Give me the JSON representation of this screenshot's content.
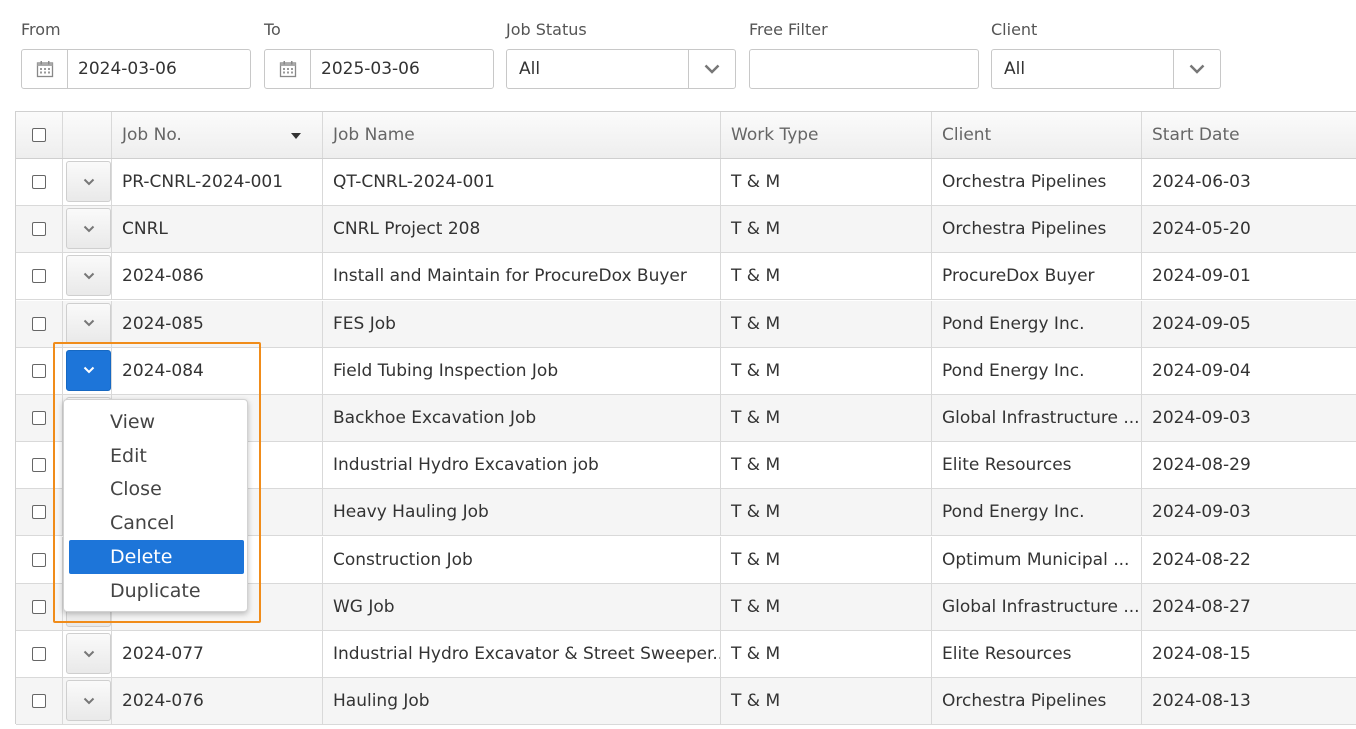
{
  "filters": {
    "from": {
      "label": "From",
      "value": "2024-03-06"
    },
    "to": {
      "label": "To",
      "value": "2025-03-06"
    },
    "job_status": {
      "label": "Job Status",
      "value": "All"
    },
    "free_filter": {
      "label": "Free Filter",
      "value": ""
    },
    "client": {
      "label": "Client",
      "value": "All"
    }
  },
  "table": {
    "columns": [
      "Job No.",
      "Job Name",
      "Work Type",
      "Client",
      "Start Date"
    ],
    "rows": [
      {
        "job_no": "PR-CNRL-2024-001",
        "job_name": "QT-CNRL-2024-001",
        "work_type": "T & M",
        "client": "Orchestra Pipelines",
        "start_date": "2024-06-03"
      },
      {
        "job_no": "CNRL",
        "job_name": "CNRL Project 208",
        "work_type": "T & M",
        "client": "Orchestra Pipelines",
        "start_date": "2024-05-20"
      },
      {
        "job_no": "2024-086",
        "job_name": "Install and Maintain for ProcureDox Buyer",
        "work_type": "T & M",
        "client": "ProcureDox Buyer",
        "start_date": "2024-09-01"
      },
      {
        "job_no": "2024-085",
        "job_name": "FES Job",
        "work_type": "T & M",
        "client": "Pond Energy Inc.",
        "start_date": "2024-09-05"
      },
      {
        "job_no": "2024-084",
        "job_name": "Field Tubing Inspection Job",
        "work_type": "T & M",
        "client": "Pond Energy Inc.",
        "start_date": "2024-09-04"
      },
      {
        "job_no": "",
        "job_name": "Backhoe Excavation Job",
        "work_type": "T & M",
        "client": "Global Infrastructure ...",
        "start_date": "2024-09-03"
      },
      {
        "job_no": "",
        "job_name": "Industrial Hydro Excavation job",
        "work_type": "T & M",
        "client": "Elite Resources",
        "start_date": "2024-08-29"
      },
      {
        "job_no": "",
        "job_name": "Heavy Hauling Job",
        "work_type": "T & M",
        "client": "Pond Energy Inc.",
        "start_date": "2024-09-03"
      },
      {
        "job_no": "",
        "job_name": "Construction Job",
        "work_type": "T & M",
        "client": "Optimum Municipal ...",
        "start_date": "2024-08-22"
      },
      {
        "job_no": "",
        "job_name": "WG Job",
        "work_type": "T & M",
        "client": "Global Infrastructure ...",
        "start_date": "2024-08-27"
      },
      {
        "job_no": "2024-077",
        "job_name": "Industrial Hydro Excavator & Street Sweeper...",
        "work_type": "T & M",
        "client": "Elite Resources",
        "start_date": "2024-08-15"
      },
      {
        "job_no": "2024-076",
        "job_name": "Hauling Job",
        "work_type": "T & M",
        "client": "Orchestra Pipelines",
        "start_date": "2024-08-13"
      }
    ]
  },
  "context_menu": {
    "items": [
      "View",
      "Edit",
      "Close",
      "Cancel",
      "Delete",
      "Duplicate"
    ],
    "selected": "Delete"
  },
  "colors": {
    "accent": "#1d75d9",
    "highlight": "#f08c1a"
  }
}
